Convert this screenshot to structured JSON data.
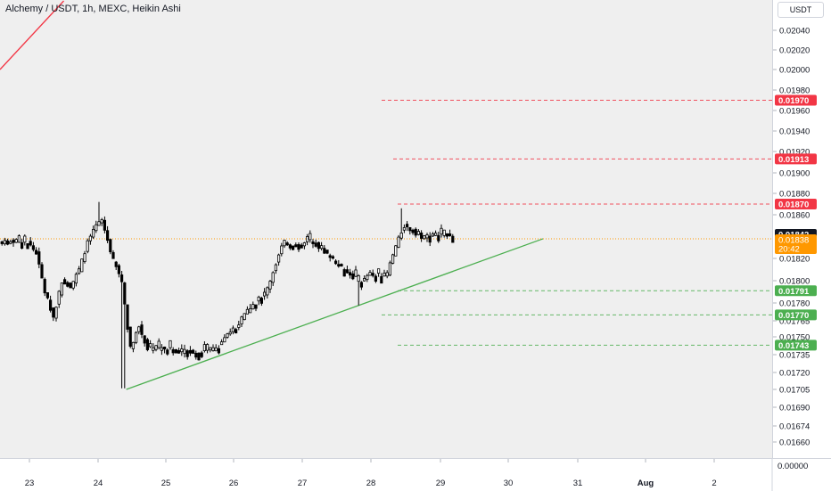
{
  "chart_data": {
    "type": "candlestick",
    "title": "Alchemy / USDT, 1h, MEXC, Heikin Ashi",
    "currency": "USDT",
    "y_tick_labels": [
      "0.02040",
      "0.02020",
      "0.02000",
      "0.01980",
      "0.01960",
      "0.01940",
      "0.01920",
      "0.01900",
      "0.01880",
      "0.01860",
      "0.01820",
      "0.01800",
      "0.01780",
      "0.01765",
      "0.01750",
      "0.01735",
      "0.01720",
      "0.01705",
      "0.01690",
      "0.01674",
      "0.01660",
      "0.00000"
    ],
    "x_tick_labels": [
      "23",
      "24",
      "25",
      "26",
      "27",
      "28",
      "29",
      "30",
      "31",
      "Aug",
      "2"
    ],
    "current_price": "0.01842",
    "last_close": "0.01838",
    "countdown": "20:42",
    "levels": [
      {
        "label": "0.01970",
        "type": "resistance",
        "color": "#f23645"
      },
      {
        "label": "0.01913",
        "type": "resistance",
        "color": "#f23645"
      },
      {
        "label": "0.01870",
        "type": "resistance",
        "color": "#f23645"
      },
      {
        "label": "0.01791",
        "type": "support",
        "color": "#4caf50"
      },
      {
        "label": "0.01770",
        "type": "support",
        "color": "#4caf50"
      },
      {
        "label": "0.01743",
        "type": "support",
        "color": "#4caf50"
      }
    ],
    "trendlines": [
      {
        "name": "descending-resistance",
        "color": "#f23645",
        "from": [
          "Jul 23 12:00",
          "0.0207"
        ],
        "to": [
          "Aug 3",
          "0.0200"
        ]
      },
      {
        "name": "ascending-support",
        "color": "#4caf50",
        "from": [
          "Jul 24 10:00",
          "0.01705"
        ],
        "to": [
          "Jul 30 12:00",
          "0.01838"
        ]
      }
    ],
    "candle_anchors": [
      [
        "Jul 23 00:00",
        0.01835
      ],
      [
        "Jul 23 03:00",
        0.01825
      ],
      [
        "Jul 23 06:00",
        0.0179
      ],
      [
        "Jul 23 09:00",
        0.01768
      ],
      [
        "Jul 23 12:00",
        0.018
      ],
      [
        "Jul 23 15:00",
        0.01795
      ],
      [
        "Jul 23 18:00",
        0.0181
      ],
      [
        "Jul 23 21:00",
        0.01835
      ],
      [
        "Jul 24 00:00",
        0.0185
      ],
      [
        "Jul 24 02:00",
        0.01855
      ],
      [
        "Jul 24 06:00",
        0.01818
      ],
      [
        "Jul 24 09:00",
        0.018
      ],
      [
        "Jul 24 12:00",
        0.0174
      ],
      [
        "Jul 24 15:00",
        0.0176
      ],
      [
        "Jul 24 18:00",
        0.0174
      ],
      [
        "Jul 25 00:00",
        0.0174
      ],
      [
        "Jul 25 06:00",
        0.01738
      ],
      [
        "Jul 25 12:00",
        0.01738
      ],
      [
        "Jul 25 18:00",
        0.0174
      ],
      [
        "Jul 26 00:00",
        0.01755
      ],
      [
        "Jul 26 06:00",
        0.01775
      ],
      [
        "Jul 26 12:00",
        0.0179
      ],
      [
        "Jul 26 18:00",
        0.01835
      ],
      [
        "Jul 27 00:00",
        0.0183
      ],
      [
        "Jul 27 03:00",
        0.01838
      ],
      [
        "Jul 27 09:00",
        0.01825
      ],
      [
        "Jul 27 15:00",
        0.0181
      ],
      [
        "Jul 27 21:00",
        0.01798
      ],
      [
        "Jul 28 00:00",
        0.01805
      ],
      [
        "Jul 28 06:00",
        0.01805
      ],
      [
        "Jul 28 09:00",
        0.0183
      ],
      [
        "Jul 28 12:00",
        0.0185
      ],
      [
        "Jul 28 18:00",
        0.0184
      ],
      [
        "Jul 29 00:00",
        0.01842
      ],
      [
        "Jul 29 04:00",
        0.01842
      ]
    ]
  }
}
